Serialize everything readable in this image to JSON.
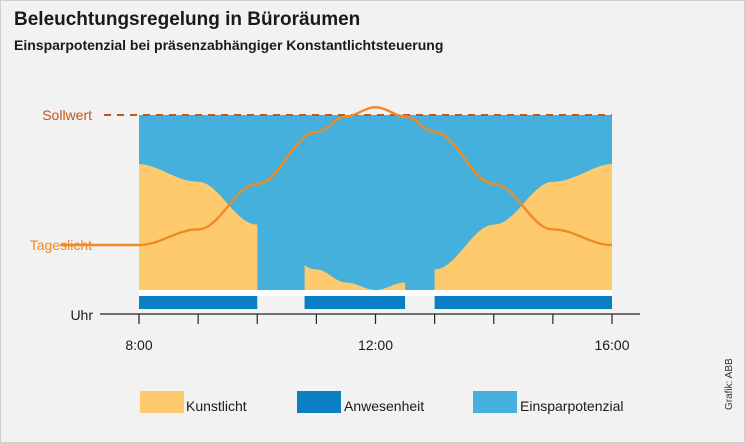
{
  "header": {
    "title": "Beleuchtungsregelung in Büroräumen",
    "subtitle": "Einsparpotenzial bei präsenzabhängiger Konstantlichtsteuerung"
  },
  "credit": "Grafik: ABB",
  "chart_data": {
    "type": "area",
    "title": "Beleuchtungsregelung in Büroräumen",
    "subtitle": "Einsparpotenzial bei präsenzabhängiger Konstantlichtsteuerung",
    "xlabel": "Uhr",
    "x_ticks": [
      "8:00",
      "12:00",
      "16:00"
    ],
    "xlim": [
      "7:00",
      "17:00"
    ],
    "level_labels": {
      "setpoint": "Sollwert",
      "daylight": "Tageslicht"
    },
    "setpoint_level": 1.0,
    "daylight_curve": {
      "x": [
        "6:40",
        "8:00",
        "9:00",
        "10:00",
        "11:00",
        "11:30",
        "12:00",
        "12:30",
        "13:00",
        "14:00",
        "15:00",
        "16:00"
      ],
      "y": [
        0.0,
        0.0,
        0.12,
        0.47,
        0.87,
        0.99,
        1.06,
        0.99,
        0.87,
        0.47,
        0.12,
        0.0
      ]
    },
    "presence": [
      {
        "start": "8:00",
        "end": "10:00"
      },
      {
        "start": "10:48",
        "end": "12:30"
      },
      {
        "start": "13:00",
        "end": "16:00"
      }
    ],
    "series": [
      {
        "name": "Kunstlicht",
        "color": "#fdcb6e"
      },
      {
        "name": "Anwesenheit",
        "color": "#0a7fc3"
      },
      {
        "name": "Einsparpotenzial",
        "color": "#46b0dc"
      }
    ],
    "daylight_color": "#ef8a24",
    "setpoint_color": "#c3551a",
    "grid": false
  }
}
